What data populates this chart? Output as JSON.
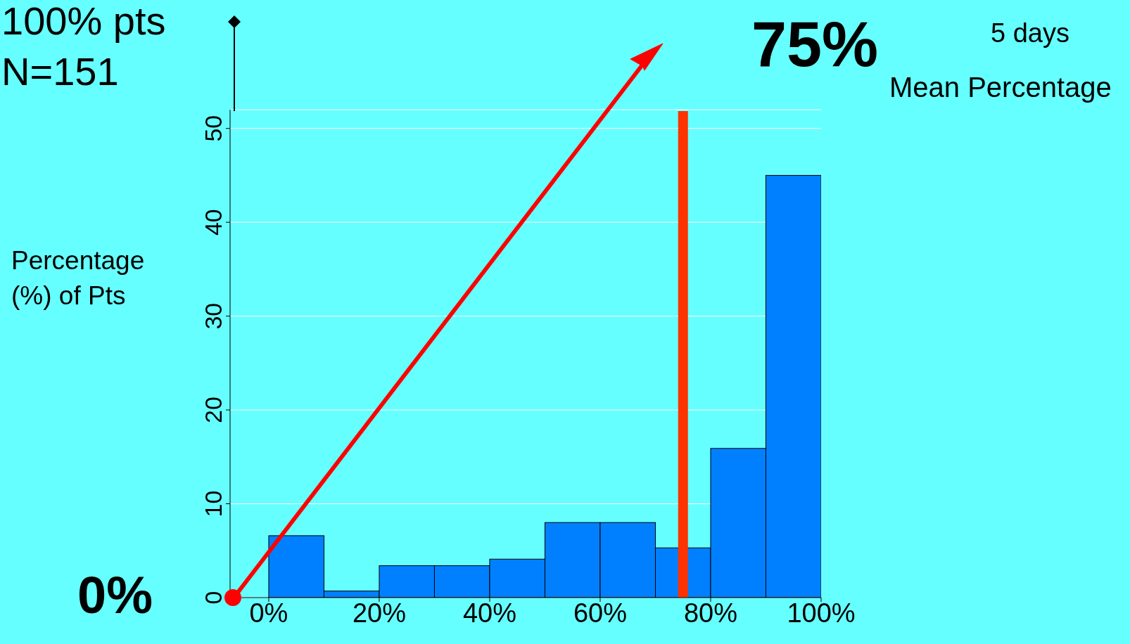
{
  "chart_data": {
    "type": "histogram",
    "ylabel": "Percentage\n(%) of Pts",
    "bins": [
      0,
      10,
      20,
      30,
      40,
      50,
      60,
      70,
      80,
      90,
      100
    ],
    "values": [
      6.6,
      0.7,
      3.4,
      3.4,
      4.1,
      8.0,
      8.0,
      5.3,
      15.9,
      45.0
    ],
    "color": "#0080ff",
    "xlim": [
      -7,
      100
    ],
    "xticks": [
      {
        "value": 0,
        "label": "0%"
      },
      {
        "value": 20,
        "label": "20%"
      },
      {
        "value": 40,
        "label": "40%"
      },
      {
        "value": 60,
        "label": "60%"
      },
      {
        "value": 80,
        "label": "80%"
      },
      {
        "value": 100,
        "label": "100%"
      }
    ],
    "ylim": [
      0,
      52
    ],
    "yticks": [
      0,
      10,
      20,
      30,
      40,
      50
    ],
    "grid": "y",
    "ref_lines": [
      {
        "axis": "x",
        "value": 75,
        "label": "75%",
        "color": "#ff3300"
      }
    ],
    "annotations": [
      "100% pts",
      "N=151",
      "0%",
      "5 days",
      "Mean Percentage"
    ]
  }
}
